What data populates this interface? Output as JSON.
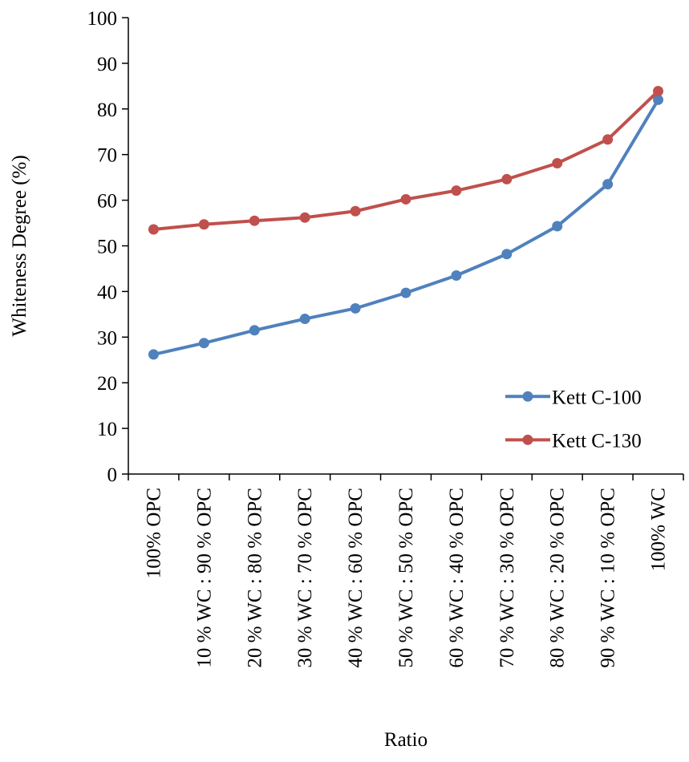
{
  "chart_data": {
    "type": "line",
    "title": "",
    "xlabel": "Ratio",
    "ylabel": "Whiteness Degree (%)",
    "ylim": [
      0,
      100
    ],
    "yticks": [
      0,
      10,
      20,
      30,
      40,
      50,
      60,
      70,
      80,
      90,
      100
    ],
    "grid": false,
    "legend_position": "bottom-right",
    "categories": [
      "100% OPC",
      "10 % WC : 90 % OPC",
      "20 % WC : 80 % OPC",
      "30 % WC : 70 % OPC",
      "40 % WC : 60 % OPC",
      "50 % WC : 50 % OPC",
      "60 % WC : 40 % OPC",
      "70 % WC : 30 % OPC",
      "80 % WC : 20 % OPC",
      "90 % WC : 10 % OPC",
      "100% WC"
    ],
    "series": [
      {
        "name": "Kett C-100",
        "color": "#4F81BD",
        "values": [
          26.2,
          28.7,
          31.5,
          34.0,
          36.3,
          39.7,
          43.5,
          48.2,
          54.3,
          63.5,
          82.0
        ]
      },
      {
        "name": "Kett C-130",
        "color": "#C0504D",
        "values": [
          53.6,
          54.7,
          55.5,
          56.2,
          57.6,
          60.2,
          62.1,
          64.6,
          68.1,
          73.3,
          83.9
        ]
      }
    ]
  }
}
